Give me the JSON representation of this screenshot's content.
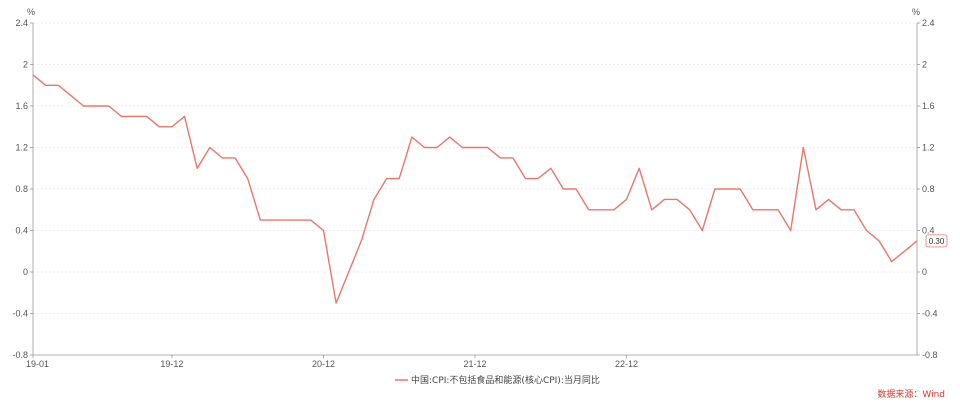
{
  "chart_data": {
    "type": "line",
    "unit_left": "%",
    "unit_right": "%",
    "ylim": [
      -0.8,
      2.4
    ],
    "yticks": [
      "-0.8",
      "-0.4",
      "0",
      "0.4",
      "0.8",
      "1.2",
      "1.6",
      "2",
      "2.4"
    ],
    "ytick_values": [
      -0.8,
      -0.4,
      0,
      0.4,
      0.8,
      1.2,
      1.6,
      2,
      2.4
    ],
    "x_tick_labels": [
      "19-01",
      "19-12",
      "20-12",
      "21-12",
      "22-12"
    ],
    "x_tick_indices": [
      0,
      11,
      23,
      35,
      47
    ],
    "grid": true,
    "legend_position": "bottom-center",
    "series": [
      {
        "name": "中国:CPI:不包括食品和能源(核心CPI):当月同比",
        "color": "#e8776a",
        "values": [
          1.9,
          1.8,
          1.8,
          1.7,
          1.6,
          1.6,
          1.6,
          1.5,
          1.5,
          1.5,
          1.4,
          1.4,
          1.5,
          1.0,
          1.2,
          1.1,
          1.1,
          0.9,
          0.5,
          0.5,
          0.5,
          0.5,
          0.5,
          0.4,
          -0.3,
          0.0,
          0.3,
          0.7,
          0.9,
          0.9,
          1.3,
          1.2,
          1.2,
          1.3,
          1.2,
          1.2,
          1.2,
          1.1,
          1.1,
          0.9,
          0.9,
          1.0,
          0.8,
          0.8,
          0.6,
          0.6,
          0.6,
          0.7,
          1.0,
          0.6,
          0.7,
          0.7,
          0.6,
          0.4,
          0.8,
          0.8,
          0.8,
          0.6,
          0.6,
          0.6,
          0.4,
          1.2,
          0.6,
          0.7,
          0.6,
          0.6,
          0.4,
          0.3,
          0.1,
          0.2,
          0.3
        ]
      }
    ],
    "end_label": "0.30"
  },
  "source": "数据来源：Wind"
}
